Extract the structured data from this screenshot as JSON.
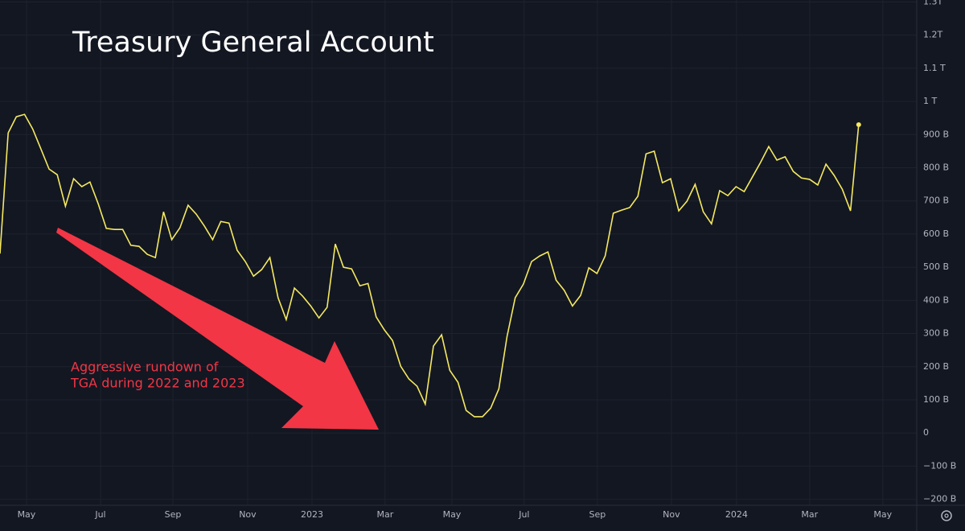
{
  "chart_data": {
    "type": "line",
    "title": "Treasury General Account",
    "annotation": [
      "Aggressive rundown of",
      "TGA during 2022 and 2023"
    ],
    "categories": [
      null,
      null,
      null,
      null,
      null,
      null,
      null,
      null,
      null,
      null,
      null,
      null,
      null,
      null,
      null,
      null,
      null,
      null,
      null,
      null,
      null,
      null,
      null,
      null,
      null,
      null,
      null,
      null,
      null,
      null,
      null,
      null,
      null,
      null,
      null,
      null,
      null,
      null,
      null,
      null,
      null,
      null,
      null,
      null,
      null,
      null,
      null,
      null,
      null,
      null,
      null,
      null,
      null,
      null,
      null,
      null,
      null,
      null,
      null,
      null,
      null,
      null,
      null,
      null,
      null,
      null,
      null,
      null,
      null,
      null,
      null,
      null,
      null,
      null,
      null,
      null,
      null,
      null,
      null,
      null,
      null,
      null,
      null,
      null,
      null,
      null,
      null,
      null,
      null,
      null,
      null,
      null,
      null,
      null,
      null,
      null,
      null,
      null,
      null,
      null,
      null,
      null,
      null,
      null,
      null,
      null
    ],
    "series": [
      {
        "color": "#f5e960",
        "values": [
          541,
          905,
          954,
          961,
          917,
          857,
          796,
          779,
          684,
          767,
          743,
          757,
          692,
          617,
          614,
          614,
          566,
          563,
          539,
          529,
          667,
          583,
          619,
          687,
          660,
          624,
          583,
          638,
          633,
          551,
          517,
          473,
          493,
          529,
          408,
          342,
          437,
          413,
          383,
          347,
          379,
          570,
          500,
          495,
          444,
          451,
          350,
          311,
          279,
          201,
          163,
          141,
          87,
          262,
          296,
          189,
          153,
          68,
          49,
          49,
          75,
          133,
          291,
          408,
          449,
          517,
          534,
          546,
          461,
          430,
          383,
          415,
          498,
          481,
          534,
          663,
          672,
          680,
          714,
          842,
          850,
          755,
          767,
          670,
          699,
          750,
          667,
          631,
          731,
          716,
          743,
          728,
          772,
          816,
          864,
          823,
          833,
          789,
          769,
          765,
          748,
          811,
          777,
          735,
          670,
          930
        ]
      }
    ],
    "xlim": [
      0,
      112.1
    ],
    "xticks": [
      {
        "value": 3.24,
        "label": "May"
      },
      {
        "value": 12.29,
        "label": "Jul"
      },
      {
        "value": 21.14,
        "label": "Sep"
      },
      {
        "value": 30.28,
        "label": "Nov"
      },
      {
        "value": 38.15,
        "label": "2023"
      },
      {
        "value": 47.09,
        "label": "Mar"
      },
      {
        "value": 55.26,
        "label": "May"
      },
      {
        "value": 64.1,
        "label": "Jul"
      },
      {
        "value": 73.05,
        "label": "Sep"
      },
      {
        "value": 82.1,
        "label": "Nov"
      },
      {
        "value": 90.06,
        "label": "2024"
      },
      {
        "value": 99.0,
        "label": "Mar"
      },
      {
        "value": 107.95,
        "label": "May"
      }
    ],
    "ylim": [
      -218,
      1306
    ],
    "yticks": [
      {
        "value": -200,
        "label": "−200 B"
      },
      {
        "value": -100,
        "label": "−100 B"
      },
      0,
      {
        "value": 100,
        "label": "100 B"
      },
      {
        "value": 200,
        "label": "200 B"
      },
      {
        "value": 300,
        "label": "300 B"
      },
      {
        "value": 400,
        "label": "400 B"
      },
      {
        "value": 500,
        "label": "500 B"
      },
      {
        "value": 600,
        "label": "600 B"
      },
      {
        "value": 700,
        "label": "700 B"
      },
      {
        "value": 800,
        "label": "800 B"
      },
      {
        "value": 900,
        "label": "900 B"
      },
      {
        "value": 1000,
        "label": "1 T"
      },
      {
        "value": 1100,
        "label": "1.1 T"
      },
      {
        "value": 1200,
        "label": "1.2T"
      },
      {
        "value": 1300,
        "label": "1.3T"
      }
    ],
    "grid": true
  }
}
